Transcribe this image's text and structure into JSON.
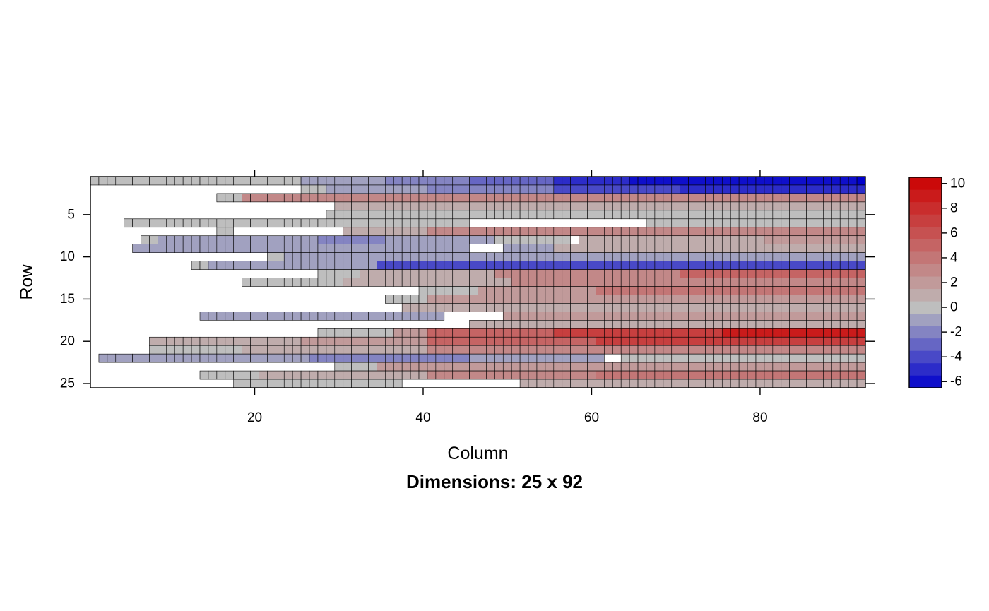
{
  "chart_data": {
    "type": "heatmap",
    "title": "",
    "subtitle": "Dimensions: 25 x 92",
    "xlabel": "Column",
    "ylabel": "Row",
    "nrow": 25,
    "ncol": 92,
    "x_ticks": [
      {
        "value": 20,
        "label": "20"
      },
      {
        "value": 40,
        "label": "40"
      },
      {
        "value": 60,
        "label": "60"
      },
      {
        "value": 80,
        "label": "80"
      }
    ],
    "y_ticks": [
      {
        "value": 5,
        "label": "5"
      },
      {
        "value": 10,
        "label": "10"
      },
      {
        "value": 15,
        "label": "15"
      },
      {
        "value": 20,
        "label": "20"
      },
      {
        "value": 25,
        "label": "25"
      }
    ],
    "colorbar": {
      "min": -6.5,
      "max": 10.5,
      "step": 1,
      "ticks": [
        {
          "value": 10,
          "label": "10"
        },
        {
          "value": 8,
          "label": "8"
        },
        {
          "value": 6,
          "label": "6"
        },
        {
          "value": 4,
          "label": "4"
        },
        {
          "value": 2,
          "label": "2"
        },
        {
          "value": 0,
          "label": "0"
        },
        {
          "value": -2,
          "label": "-2"
        },
        {
          "value": -4,
          "label": "-4"
        },
        {
          "value": -6,
          "label": "-6"
        }
      ],
      "neg_color": "#0000CC",
      "mid_color": "#BEBEBE",
      "pos_color": "#CC0000"
    },
    "cell_edge_color": "#000000",
    "value_bands": {
      "description_of_format": "each row lists [start_col, end_col, value]; columns outside bands are empty",
      "rows": [
        [
          [
            1,
            25,
            0
          ],
          [
            26,
            35,
            -1
          ],
          [
            36,
            45,
            -2
          ],
          [
            46,
            55,
            -3
          ],
          [
            56,
            64,
            -5
          ],
          [
            65,
            82,
            -6
          ],
          [
            83,
            91,
            -6
          ],
          [
            92,
            92,
            -7
          ]
        ],
        [
          [
            26,
            28,
            0
          ],
          [
            29,
            40,
            -1
          ],
          [
            41,
            55,
            -2
          ],
          [
            56,
            70,
            -4
          ],
          [
            71,
            92,
            -5
          ]
        ],
        [
          [
            16,
            18,
            0
          ],
          [
            19,
            92,
            3
          ]
        ],
        [
          [
            30,
            92,
            1
          ]
        ],
        [
          [
            29,
            92,
            0
          ]
        ],
        [
          [
            5,
            45,
            0
          ],
          [
            67,
            92,
            0
          ]
        ],
        [
          [
            16,
            17,
            0
          ],
          [
            31,
            40,
            1
          ],
          [
            41,
            92,
            3
          ]
        ],
        [
          [
            7,
            8,
            0
          ],
          [
            9,
            27,
            -1
          ],
          [
            28,
            35,
            -2
          ],
          [
            36,
            48,
            -1
          ],
          [
            49,
            57,
            0
          ],
          [
            59,
            80,
            1
          ],
          [
            81,
            92,
            2
          ]
        ],
        [
          [
            6,
            7,
            -1
          ],
          [
            8,
            45,
            -1
          ],
          [
            50,
            55,
            -1
          ],
          [
            56,
            92,
            1
          ]
        ],
        [
          [
            22,
            23,
            0
          ],
          [
            24,
            40,
            -1
          ],
          [
            41,
            92,
            -1
          ]
        ],
        [
          [
            13,
            14,
            0
          ],
          [
            15,
            34,
            -1
          ],
          [
            35,
            54,
            -4
          ],
          [
            55,
            92,
            -4
          ]
        ],
        [
          [
            28,
            32,
            0
          ],
          [
            33,
            48,
            1
          ],
          [
            49,
            70,
            3
          ],
          [
            71,
            92,
            5
          ]
        ],
        [
          [
            19,
            30,
            0
          ],
          [
            31,
            50,
            1
          ],
          [
            51,
            92,
            3
          ]
        ],
        [
          [
            40,
            46,
            0
          ],
          [
            47,
            60,
            2
          ],
          [
            61,
            92,
            4
          ]
        ],
        [
          [
            36,
            40,
            0
          ],
          [
            41,
            92,
            2
          ]
        ],
        [
          [
            38,
            92,
            1
          ]
        ],
        [
          [
            14,
            42,
            -1
          ],
          [
            50,
            92,
            2
          ]
        ],
        [
          [
            46,
            92,
            1
          ]
        ],
        [
          [
            28,
            36,
            0
          ],
          [
            37,
            40,
            2
          ],
          [
            41,
            55,
            5
          ],
          [
            56,
            75,
            7
          ],
          [
            76,
            92,
            9
          ]
        ],
        [
          [
            8,
            25,
            1
          ],
          [
            26,
            40,
            2
          ],
          [
            41,
            60,
            5
          ],
          [
            61,
            92,
            7
          ]
        ],
        [
          [
            8,
            18,
            0
          ],
          [
            19,
            40,
            1
          ],
          [
            41,
            92,
            3
          ]
        ],
        [
          [
            2,
            16,
            -1
          ],
          [
            17,
            26,
            -1
          ],
          [
            27,
            45,
            -2
          ],
          [
            46,
            61,
            -1
          ],
          [
            64,
            92,
            0
          ]
        ],
        [
          [
            30,
            34,
            0
          ],
          [
            35,
            92,
            2
          ]
        ],
        [
          [
            14,
            20,
            0
          ],
          [
            21,
            40,
            1
          ],
          [
            41,
            60,
            3
          ],
          [
            61,
            92,
            4
          ]
        ],
        [
          [
            18,
            37,
            0
          ],
          [
            52,
            92,
            1
          ]
        ]
      ]
    }
  }
}
